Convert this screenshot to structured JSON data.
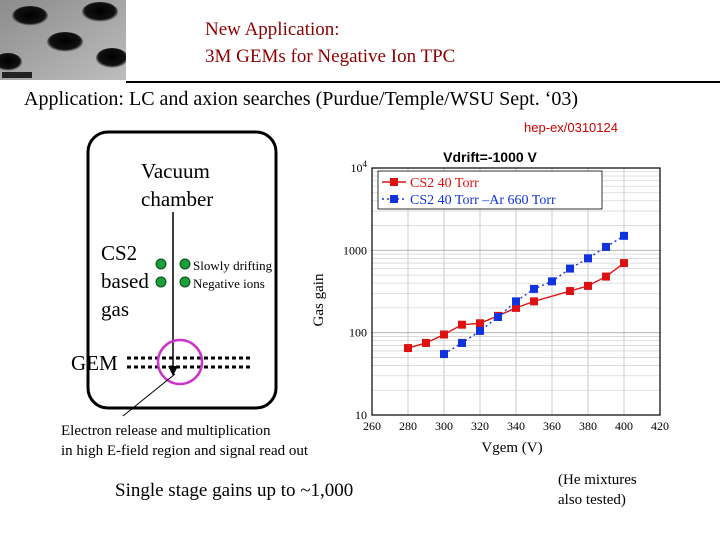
{
  "header": {
    "title_line1": "New Application:",
    "title_line2": "3M GEMs for Negative Ion TPC",
    "subtitle": "Application: LC and axion searches (Purdue/Temple/WSU Sept. ‘03)",
    "reference": "hep-ex/0310124"
  },
  "diagram": {
    "vacuum_line1": "Vacuum",
    "vacuum_line2": "chamber",
    "gas_line1": "CS2",
    "gas_line2": "based",
    "gas_line3": "gas",
    "ions_line1": "Slowly drifting",
    "ions_line2": "Negative ions",
    "gem_label": "GEM",
    "caption_line1": "Electron release and  multiplication",
    "caption_line2": "in high E-field region and signal read out",
    "colors": {
      "ion": "#1a9e3a",
      "highlight": "#cc33cc"
    }
  },
  "chart_data": {
    "type": "scatter",
    "title": "Vdrift=-1000 V",
    "xlabel": "Vgem (V)",
    "ylabel": "Gas gain",
    "xlim": [
      260,
      420
    ],
    "ylim": [
      10,
      10000
    ],
    "yscale": "log",
    "x_ticks": [
      260,
      280,
      300,
      320,
      340,
      360,
      380,
      400,
      420
    ],
    "y_ticks": [
      10,
      100,
      1000
    ],
    "y_tick_labels": [
      "10",
      "100",
      "1000"
    ],
    "y_top_label_base": "10",
    "y_top_label_exp": "4",
    "grid": true,
    "legend_position": "top",
    "series": [
      {
        "name": "CS2 40  Torr",
        "color": "#dd1111",
        "line": "solid",
        "x": [
          280,
          290,
          300,
          310,
          320,
          330,
          340,
          350,
          370,
          380,
          390,
          400
        ],
        "y": [
          65,
          75,
          95,
          125,
          130,
          160,
          200,
          240,
          320,
          370,
          480,
          700
        ]
      },
      {
        "name": "CS2 40 Torr –Ar 660 Torr",
        "color": "#1133dd",
        "line": "dotted",
        "x": [
          300,
          310,
          320,
          330,
          340,
          350,
          360,
          370,
          380,
          390,
          400
        ],
        "y": [
          55,
          75,
          105,
          155,
          240,
          340,
          420,
          600,
          800,
          1100,
          1500
        ]
      }
    ]
  },
  "footer": {
    "left": "Single stage gains up to ~1,000",
    "right_line1": "(He mixtures",
    "right_line2": "also tested)"
  }
}
